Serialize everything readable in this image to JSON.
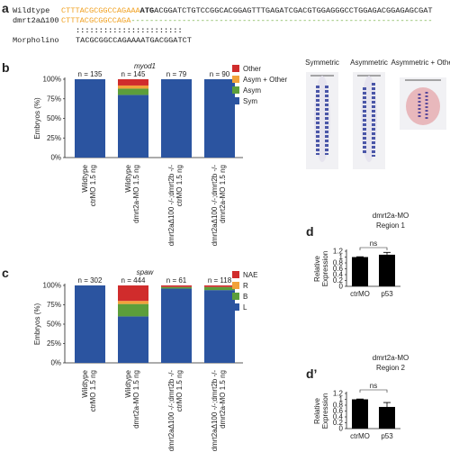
{
  "panel_labels": [
    "a",
    "b",
    "c",
    "d",
    "d’"
  ],
  "sequence": {
    "wildtype": {
      "label": "Wildtype",
      "utr": "CTTTACGCGGCCAGAAA",
      "start": "ATG",
      "rest": "ACGGATCTGTCCGGCACGGAGTTTGAGATCGACGTGGAGGGCCTGGAGACGGAGAGCGAT"
    },
    "mutant": {
      "label": "dmrt2aΔ100",
      "utr": "CTTTACGCGGCCAGA",
      "deletion": "-----------------------------------------------------------------"
    },
    "match": ":::::::::::::::::::::::",
    "morpholino": {
      "label": "Morpholino",
      "seq": "TACGCGGCCAGAAAATGACGGATCT"
    }
  },
  "images": [
    "Symmetric",
    "Asymmetric",
    "Asymmetric + Other"
  ],
  "chart_data": [
    {
      "type": "stacked-bar",
      "title": "myod1",
      "y_label": "Embryos (%)",
      "categories": [
        [
          "Wildtype",
          "ctrMO 1.5 ng"
        ],
        [
          "Wildtype",
          "dmrt2a-MO 1.5 ng"
        ],
        [
          "dmrt2aΔ100 -/-;dmrt2b -/-",
          "ctrMO 1.5 ng"
        ],
        [
          "dmrt2aΔ100 -/-;dmrt2b -/-",
          "dmrt2a-MO 1.5 ng"
        ]
      ],
      "annotations": [
        "n = 135",
        "n = 145",
        "n = 79",
        "n = 90"
      ],
      "series": [
        {
          "name": "Sym",
          "color": "#2b54a0",
          "values": [
            100,
            80,
            100,
            100
          ]
        },
        {
          "name": "Asym",
          "color": "#5c9e3b",
          "values": [
            0,
            8,
            0,
            0
          ]
        },
        {
          "name": "Asym + Other",
          "color": "#f2a23a",
          "values": [
            0,
            4,
            0,
            0
          ]
        },
        {
          "name": "Other",
          "color": "#d02c2c",
          "values": [
            0,
            8,
            0,
            0
          ]
        }
      ],
      "ylim": [
        0,
        100
      ],
      "yticks": [
        {
          "value": 0,
          "label": "0%"
        },
        {
          "value": 25,
          "label": "25%"
        },
        {
          "value": 50,
          "label": "50%"
        },
        {
          "value": 75,
          "label": "75%"
        },
        {
          "value": 100,
          "label": "100%"
        }
      ],
      "legend": "right"
    },
    {
      "type": "stacked-bar",
      "title": "spaw",
      "y_label": "Embryos (%)",
      "categories": [
        [
          "Wildtype",
          "ctrMO 1.5 ng"
        ],
        [
          "Wildtype",
          "dmrt2a-MO 1.5 ng"
        ],
        [
          "dmrt2aΔ100 -/-;dmrt2b -/-",
          "ctrMO 1.5 ng"
        ],
        [
          "dmrt2aΔ100 -/-;dmrt2b -/-",
          "dmrt2a-MO 1.5 ng"
        ]
      ],
      "annotations": [
        "n = 302",
        "n = 444",
        "n = 61",
        "n = 118"
      ],
      "series": [
        {
          "name": "L",
          "color": "#2b54a0",
          "values": [
            100,
            60,
            96,
            94
          ]
        },
        {
          "name": "B",
          "color": "#5c9e3b",
          "values": [
            0,
            16,
            2,
            4
          ]
        },
        {
          "name": "R",
          "color": "#f2a23a",
          "values": [
            0,
            4,
            0,
            0
          ]
        },
        {
          "name": "NAE",
          "color": "#d02c2c",
          "values": [
            0,
            20,
            2,
            2
          ]
        }
      ],
      "ylim": [
        0,
        100
      ],
      "yticks": [
        {
          "value": 0,
          "label": "0%"
        },
        {
          "value": 25,
          "label": "25%"
        },
        {
          "value": 50,
          "label": "50%"
        },
        {
          "value": 75,
          "label": "75%"
        },
        {
          "value": 100,
          "label": "100%"
        }
      ],
      "legend": "right"
    },
    {
      "type": "bar",
      "title": [
        "dmrt2a-MO",
        "Region 1"
      ],
      "y_label": [
        "Relative",
        "Expression"
      ],
      "categories": [
        "ctrMO",
        "p53"
      ],
      "values": [
        1.0,
        1.08
      ],
      "errors": [
        0.01,
        0.08
      ],
      "color": "#000000",
      "annotations": [
        "ns"
      ],
      "ylim": [
        0,
        1.2
      ],
      "yticks": [
        0,
        0.2,
        0.4,
        0.6,
        0.8,
        1,
        1.2
      ]
    },
    {
      "type": "bar",
      "title": [
        "dmrt2a-MO",
        "Region 2"
      ],
      "y_label": [
        "Relative",
        "Expression"
      ],
      "categories": [
        "ctrMO",
        "p53"
      ],
      "values": [
        1.0,
        0.74
      ],
      "errors": [
        0.01,
        0.15
      ],
      "color": "#000000",
      "annotations": [
        "ns"
      ],
      "ylim": [
        0,
        1.2
      ],
      "yticks": [
        0,
        0.2,
        0.4,
        0.6,
        0.8,
        1,
        1.2
      ]
    }
  ]
}
